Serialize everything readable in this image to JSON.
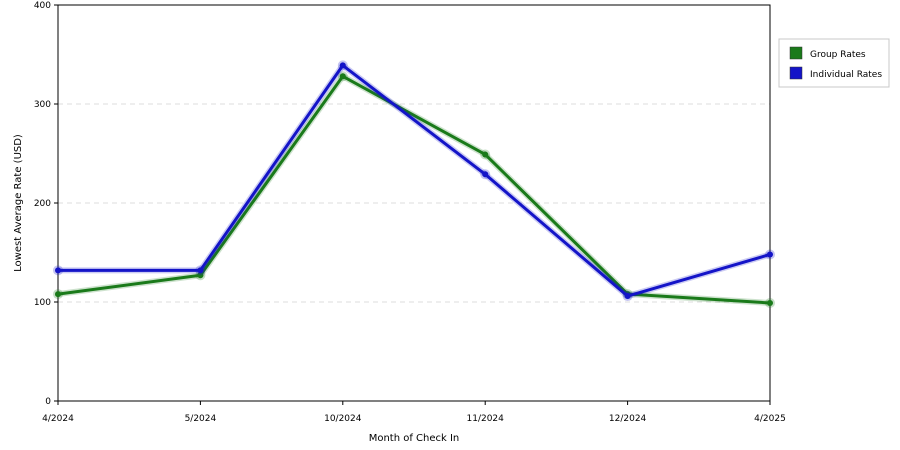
{
  "chart_data": {
    "type": "line",
    "title": "",
    "xlabel": "Month of Check In",
    "ylabel": "Lowest Average Rate (USD)",
    "categories": [
      "4/2024",
      "5/2024",
      "10/2024",
      "11/2024",
      "12/2024",
      "4/2025"
    ],
    "ylim": [
      0,
      400
    ],
    "yticks": [
      0,
      100,
      200,
      300,
      400
    ],
    "grid": true,
    "legend_position": "right",
    "series": [
      {
        "name": "Group Rates",
        "color": "#1a7a1a",
        "values": [
          108,
          127,
          328,
          249,
          108,
          99
        ]
      },
      {
        "name": "Individual Rates",
        "color": "#1414c8",
        "values": [
          132,
          132,
          339,
          229,
          106,
          148
        ]
      }
    ]
  }
}
